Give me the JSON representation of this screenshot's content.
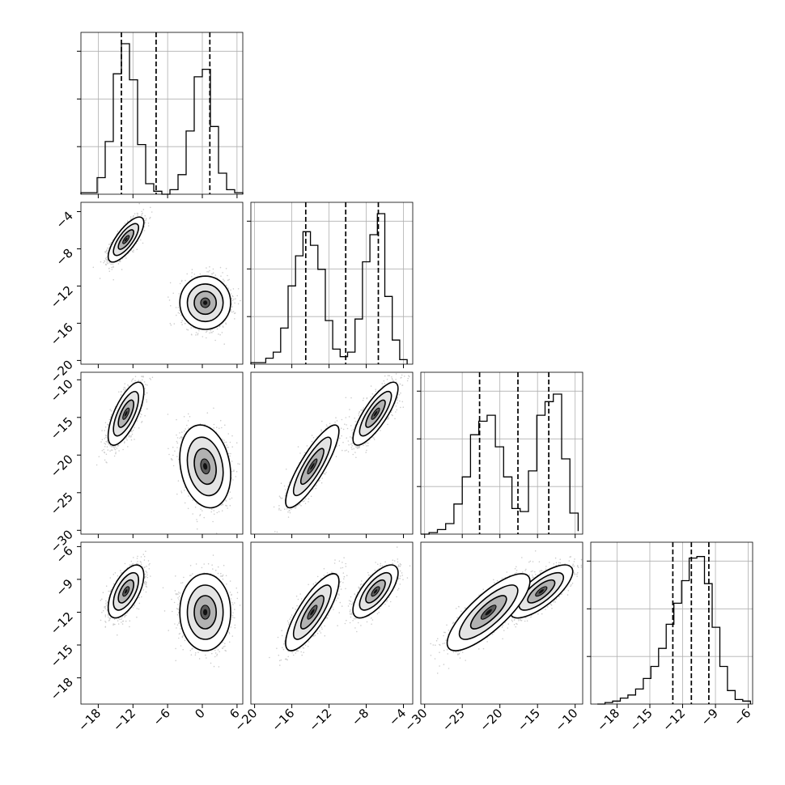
{
  "chart_data": {
    "type": "corner",
    "parameters": 4,
    "grid": true,
    "parameter_axes": [
      {
        "range": [
          -21,
          7
        ],
        "ticks": [
          -18,
          -12,
          -6,
          0,
          6
        ],
        "tick_labels": [
          "−18",
          "−12",
          "−6",
          "0",
          "6"
        ]
      },
      {
        "range": [
          -20.4,
          -3
        ],
        "ticks": [
          -20,
          -16,
          -12,
          -8,
          -4
        ],
        "tick_labels": [
          "−20",
          "−16",
          "−12",
          "−8",
          "−4"
        ]
      },
      {
        "range": [
          -30.5,
          -9
        ],
        "ticks": [
          -30,
          -25,
          -20,
          -15,
          -10
        ],
        "tick_labels": [
          "−30",
          "−25",
          "−20",
          "−15",
          "−10"
        ]
      },
      {
        "range": [
          -20.4,
          -5.6
        ],
        "ticks": [
          -18,
          -15,
          -12,
          -9,
          -6
        ],
        "tick_labels": [
          "−18",
          "−15",
          "−12",
          "−9",
          "−6"
        ]
      }
    ],
    "modes": [
      {
        "mean": [
          -13.2,
          -7.0,
          -14.5,
          -10.1
        ],
        "sd": [
          1.4,
          1.1,
          1.9,
          1.1
        ]
      },
      {
        "mean": [
          0.5,
          -13.8,
          -21.5,
          -12.0
        ],
        "sd": [
          2.0,
          1.3,
          2.5,
          1.6
        ]
      }
    ],
    "correlations": {
      "0-1": [
        0.75,
        0.0
      ],
      "0-2": [
        0.7,
        -0.2
      ],
      "0-3": [
        0.6,
        0.0
      ],
      "1-2": [
        0.8,
        0.85
      ],
      "1-3": [
        0.7,
        0.8
      ],
      "2-3": [
        0.75,
        0.8
      ]
    },
    "histograms": [
      {
        "edges": [
          -21,
          -19.6,
          -18.2,
          -16.8,
          -15.4,
          -14,
          -12.6,
          -11.2,
          -9.8,
          -8.4,
          -7,
          -5.6,
          -4.2,
          -2.8,
          -1.4,
          0,
          1.4,
          2.8,
          4.2,
          5.6,
          7
        ],
        "counts": [
          0.01,
          0.01,
          0.11,
          0.35,
          0.8,
          1.0,
          0.76,
          0.33,
          0.07,
          0.02,
          0.0,
          0.03,
          0.13,
          0.42,
          0.78,
          0.83,
          0.45,
          0.14,
          0.03,
          0.01
        ]
      },
      {
        "edges": [
          -20.4,
          -19.6,
          -18.8,
          -18,
          -17.2,
          -16.4,
          -15.6,
          -14.8,
          -14,
          -13.2,
          -12.4,
          -11.6,
          -10.8,
          -10,
          -9.2,
          -8.4,
          -7.6,
          -6.8,
          -6,
          -5.2,
          -4.4,
          -3.6
        ],
        "counts": [
          0.01,
          0.01,
          0.04,
          0.08,
          0.24,
          0.52,
          0.72,
          0.88,
          0.79,
          0.63,
          0.29,
          0.1,
          0.05,
          0.08,
          0.3,
          0.68,
          0.86,
          1.0,
          0.45,
          0.16,
          0.03
        ]
      },
      {
        "edges": [
          -30.5,
          -29.4,
          -28.3,
          -27.2,
          -26.1,
          -25,
          -23.9,
          -22.8,
          -21.7,
          -20.6,
          -19.5,
          -18.4,
          -17.3,
          -16.2,
          -15.1,
          -14,
          -12.9,
          -11.8,
          -10.7,
          -9.6
        ],
        "counts": [
          0.0,
          0.01,
          0.03,
          0.07,
          0.2,
          0.38,
          0.66,
          0.75,
          0.79,
          0.58,
          0.38,
          0.17,
          0.15,
          0.42,
          0.79,
          0.88,
          0.93,
          0.5,
          0.14,
          0.02
        ]
      },
      {
        "edges": [
          -19.8,
          -19.1,
          -18.4,
          -17.7,
          -17,
          -16.3,
          -15.6,
          -14.9,
          -14.2,
          -13.5,
          -12.8,
          -12.1,
          -11.4,
          -10.7,
          -10,
          -9.3,
          -8.6,
          -7.9,
          -7.2,
          -6.5,
          -5.8
        ],
        "counts": [
          0.0,
          0.01,
          0.02,
          0.04,
          0.06,
          0.1,
          0.17,
          0.25,
          0.37,
          0.53,
          0.67,
          0.82,
          0.97,
          0.98,
          0.8,
          0.51,
          0.25,
          0.09,
          0.03,
          0.02
        ]
      }
    ],
    "quantiles": [
      [
        -14.0,
        -8.0,
        1.3
      ],
      [
        -14.5,
        -10.2,
        -6.7
      ],
      [
        -22.7,
        -17.6,
        -13.5
      ],
      [
        -12.9,
        -11.2,
        -9.6
      ]
    ]
  }
}
